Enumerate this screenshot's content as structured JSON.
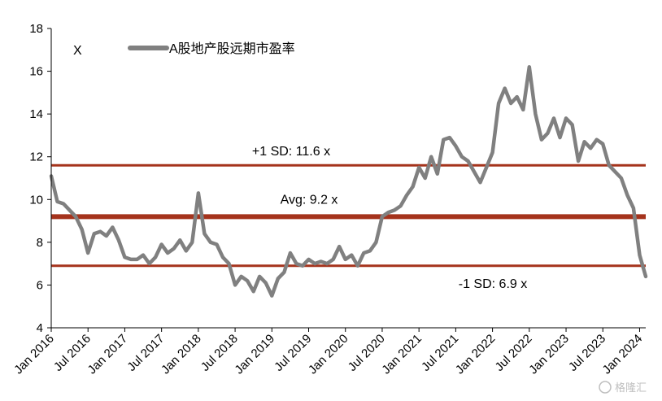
{
  "chart_data": {
    "type": "line",
    "unit_label": "X",
    "title": "",
    "xlabel": "",
    "ylabel": "",
    "ylim": [
      4,
      18
    ],
    "yticks": [
      4,
      6,
      8,
      10,
      12,
      14,
      16,
      18
    ],
    "xlim": [
      "2016-01",
      "2024-02"
    ],
    "xticks": [
      "2016-01",
      "2016-07",
      "2017-01",
      "2017-07",
      "2018-01",
      "2018-07",
      "2019-01",
      "2019-07",
      "2020-01",
      "2020-07",
      "2021-01",
      "2021-07",
      "2022-01",
      "2022-07",
      "2023-01",
      "2023-07",
      "2024-01"
    ],
    "xtick_labels": [
      "Jan 2016",
      "Jul 2016",
      "Jan 2017",
      "Jul 2017",
      "Jan 2018",
      "Jul 2018",
      "Jan 2019",
      "Jul 2019",
      "Jan 2020",
      "Jul 2020",
      "Jan 2021",
      "Jul 2021",
      "Jan 2022",
      "Jul 2022",
      "Jan 2023",
      "Jul 2023",
      "Jan 2024"
    ],
    "legend": "top-left",
    "grid": false,
    "series": [
      {
        "name": "A股地产股远期市盈率",
        "color": "#808080",
        "points": [
          [
            "2016-01",
            11.1
          ],
          [
            "2016-02",
            9.9
          ],
          [
            "2016-03",
            9.8
          ],
          [
            "2016-04",
            9.5
          ],
          [
            "2016-05",
            9.2
          ],
          [
            "2016-06",
            8.6
          ],
          [
            "2016-07",
            7.5
          ],
          [
            "2016-08",
            8.4
          ],
          [
            "2016-09",
            8.5
          ],
          [
            "2016-10",
            8.3
          ],
          [
            "2016-11",
            8.7
          ],
          [
            "2016-12",
            8.1
          ],
          [
            "2017-01",
            7.3
          ],
          [
            "2017-02",
            7.2
          ],
          [
            "2017-03",
            7.2
          ],
          [
            "2017-04",
            7.4
          ],
          [
            "2017-05",
            7.0
          ],
          [
            "2017-06",
            7.3
          ],
          [
            "2017-07",
            7.9
          ],
          [
            "2017-08",
            7.5
          ],
          [
            "2017-09",
            7.7
          ],
          [
            "2017-10",
            8.1
          ],
          [
            "2017-11",
            7.6
          ],
          [
            "2017-12",
            8.0
          ],
          [
            "2018-01",
            10.3
          ],
          [
            "2018-02",
            8.4
          ],
          [
            "2018-03",
            8.0
          ],
          [
            "2018-04",
            7.9
          ],
          [
            "2018-05",
            7.3
          ],
          [
            "2018-06",
            7.0
          ],
          [
            "2018-07",
            6.0
          ],
          [
            "2018-08",
            6.4
          ],
          [
            "2018-09",
            6.2
          ],
          [
            "2018-10",
            5.7
          ],
          [
            "2018-11",
            6.4
          ],
          [
            "2018-12",
            6.1
          ],
          [
            "2019-01",
            5.5
          ],
          [
            "2019-02",
            6.3
          ],
          [
            "2019-03",
            6.6
          ],
          [
            "2019-04",
            7.5
          ],
          [
            "2019-05",
            7.0
          ],
          [
            "2019-06",
            6.9
          ],
          [
            "2019-07",
            7.2
          ],
          [
            "2019-08",
            7.0
          ],
          [
            "2019-09",
            7.1
          ],
          [
            "2019-10",
            7.0
          ],
          [
            "2019-11",
            7.2
          ],
          [
            "2019-12",
            7.8
          ],
          [
            "2020-01",
            7.2
          ],
          [
            "2020-02",
            7.4
          ],
          [
            "2020-03",
            6.9
          ],
          [
            "2020-04",
            7.5
          ],
          [
            "2020-05",
            7.6
          ],
          [
            "2020-06",
            8.0
          ],
          [
            "2020-07",
            9.2
          ],
          [
            "2020-08",
            9.4
          ],
          [
            "2020-09",
            9.5
          ],
          [
            "2020-10",
            9.7
          ],
          [
            "2020-11",
            10.2
          ],
          [
            "2020-12",
            10.6
          ],
          [
            "2021-01",
            11.5
          ],
          [
            "2021-02",
            11.0
          ],
          [
            "2021-03",
            12.0
          ],
          [
            "2021-04",
            11.2
          ],
          [
            "2021-05",
            12.8
          ],
          [
            "2021-06",
            12.9
          ],
          [
            "2021-07",
            12.5
          ],
          [
            "2021-08",
            12.0
          ],
          [
            "2021-09",
            11.8
          ],
          [
            "2021-10",
            11.3
          ],
          [
            "2021-11",
            10.8
          ],
          [
            "2021-12",
            11.5
          ],
          [
            "2022-01",
            12.2
          ],
          [
            "2022-02",
            14.5
          ],
          [
            "2022-03",
            15.2
          ],
          [
            "2022-04",
            14.5
          ],
          [
            "2022-05",
            14.8
          ],
          [
            "2022-06",
            14.2
          ],
          [
            "2022-07",
            16.2
          ],
          [
            "2022-08",
            14.0
          ],
          [
            "2022-09",
            12.8
          ],
          [
            "2022-10",
            13.1
          ],
          [
            "2022-11",
            13.8
          ],
          [
            "2022-12",
            12.9
          ],
          [
            "2023-01",
            13.8
          ],
          [
            "2023-02",
            13.5
          ],
          [
            "2023-03",
            11.8
          ],
          [
            "2023-04",
            12.7
          ],
          [
            "2023-05",
            12.4
          ],
          [
            "2023-06",
            12.8
          ],
          [
            "2023-07",
            12.6
          ],
          [
            "2023-08",
            11.6
          ],
          [
            "2023-09",
            11.3
          ],
          [
            "2023-10",
            11.0
          ],
          [
            "2023-11",
            10.2
          ],
          [
            "2023-12",
            9.6
          ],
          [
            "2024-01",
            7.4
          ],
          [
            "2024-02",
            6.4
          ]
        ]
      }
    ],
    "reference_lines": [
      {
        "label": "+1 SD: 11.6 x",
        "value": 11.6,
        "color": "#a5331c"
      },
      {
        "label": "Avg: 9.2 x",
        "value": 9.2,
        "color": "#a5331c"
      },
      {
        "label": "-1 SD: 6.9 x",
        "value": 6.9,
        "color": "#a5331c"
      }
    ],
    "watermark": "格隆汇"
  }
}
